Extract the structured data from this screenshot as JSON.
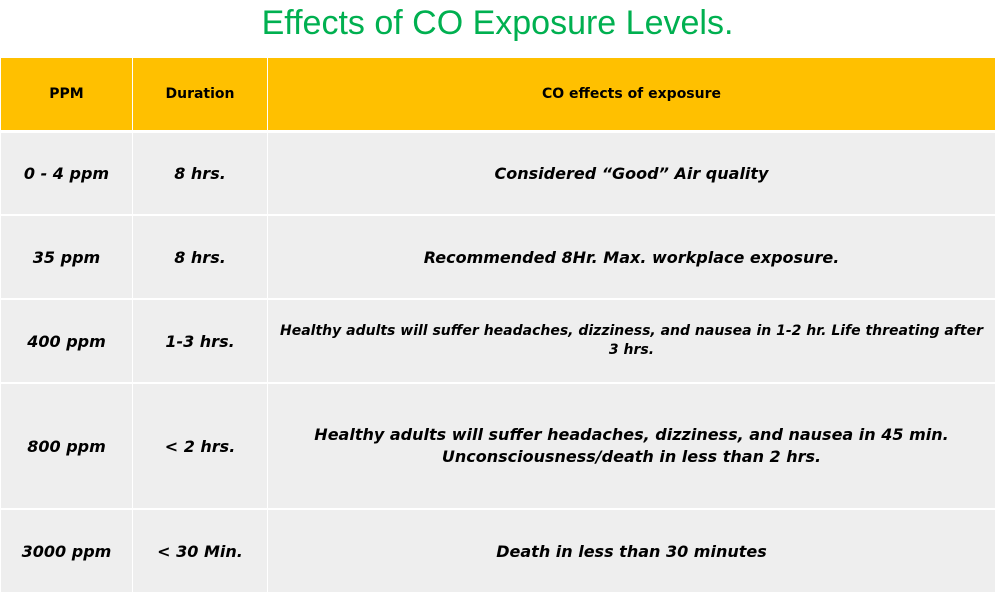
{
  "title": "Effects of CO Exposure Levels.",
  "colors": {
    "title": "#00b050",
    "header_bg": "#ffc000",
    "row_bg": "#eeeeee"
  },
  "table": {
    "headers": [
      "PPM",
      "Duration",
      "CO effects of exposure"
    ],
    "rows": [
      {
        "ppm": "0 - 4 ppm",
        "duration": "8 hrs.",
        "effect": "Considered “Good” Air quality"
      },
      {
        "ppm": "35 ppm",
        "duration": "8 hrs.",
        "effect": "Recommended 8Hr. Max. workplace exposure."
      },
      {
        "ppm": "400 ppm",
        "duration": "1-3 hrs.",
        "effect": "Healthy adults will suffer headaches, dizziness, and nausea in 1-2 hr. Life threating after 3 hrs."
      },
      {
        "ppm": "800 ppm",
        "duration": "< 2 hrs.",
        "effect": "Healthy adults will suffer headaches, dizziness, and nausea in 45 min. Unconsciousness/death in less than 2 hrs."
      },
      {
        "ppm": "3000 ppm",
        "duration": "< 30 Min.",
        "effect": "Death in less than 30 minutes"
      }
    ]
  }
}
